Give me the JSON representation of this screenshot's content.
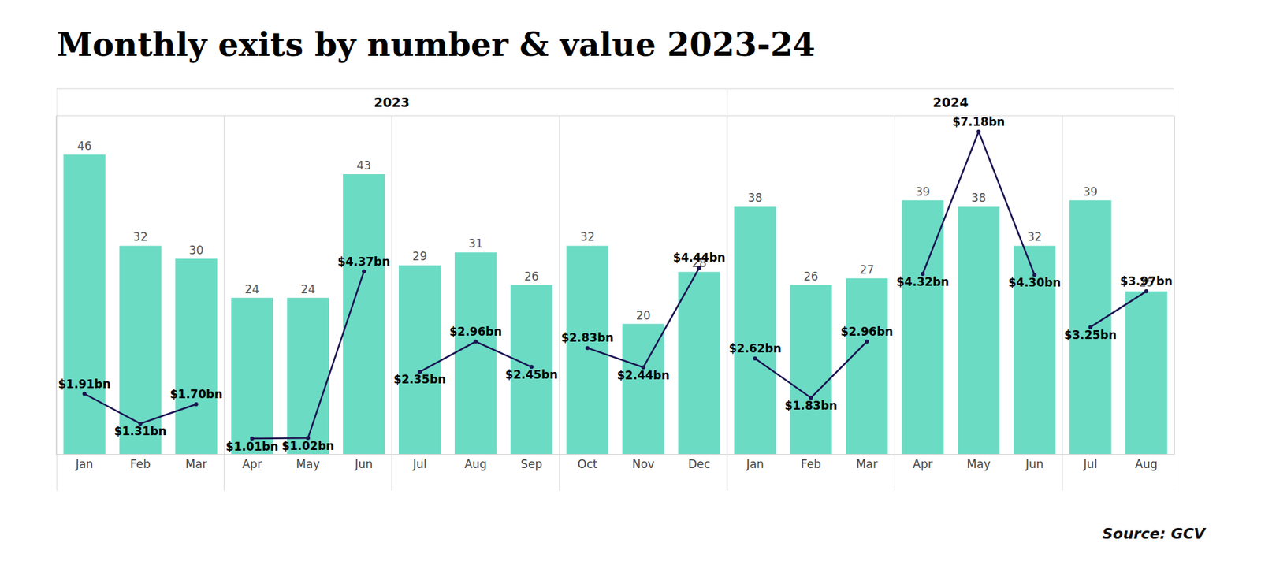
{
  "chart_data": {
    "type": "bar",
    "title": "Monthly exits by number & value 2023-24",
    "source": "Source: GCV",
    "categories": [
      "Jan",
      "Feb",
      "Mar",
      "Apr",
      "May",
      "Jun",
      "Jul",
      "Aug",
      "Sep",
      "Oct",
      "Nov",
      "Dec",
      "Jan",
      "Feb",
      "Mar",
      "Apr",
      "May",
      "Jun",
      "Jul",
      "Aug"
    ],
    "groups": [
      {
        "label": "2023",
        "size": 12
      },
      {
        "label": "2024",
        "size": 8
      }
    ],
    "series": [
      {
        "type": "bar",
        "color": "#6cdbc4",
        "values": [
          46,
          32,
          30,
          24,
          24,
          43,
          29,
          31,
          26,
          32,
          20,
          28,
          38,
          26,
          27,
          39,
          38,
          32,
          39,
          25
        ]
      },
      {
        "type": "line",
        "axis": "y2",
        "color": "#1b1552",
        "marker": "circle",
        "values": [
          1.91,
          1.31,
          1.7,
          1.01,
          1.02,
          4.37,
          2.35,
          2.96,
          2.45,
          2.83,
          2.44,
          4.44,
          2.62,
          1.83,
          2.96,
          4.32,
          7.18,
          4.3,
          3.25,
          3.97
        ],
        "value_labels": [
          "$1.91bn",
          "$1.31bn",
          "$1.70bn",
          "$1.01bn",
          "$1.02bn",
          "$4.37bn",
          "$2.35bn",
          "$2.96bn",
          "$2.45bn",
          "$2.83bn",
          "$2.44bn",
          "$4.44bn",
          "$2.62bn",
          "$1.83bn",
          "$2.96bn",
          "$4.32bn",
          "$7.18bn",
          "$4.30bn",
          "$3.25bn",
          "$3.97bn"
        ]
      }
    ],
    "ylim": [
      0,
      52
    ],
    "yticks": [],
    "y2lim": [
      0.7,
      7.5
    ],
    "y2ticks": [],
    "data_labels": true,
    "tick_labels": "x",
    "grid": false
  }
}
